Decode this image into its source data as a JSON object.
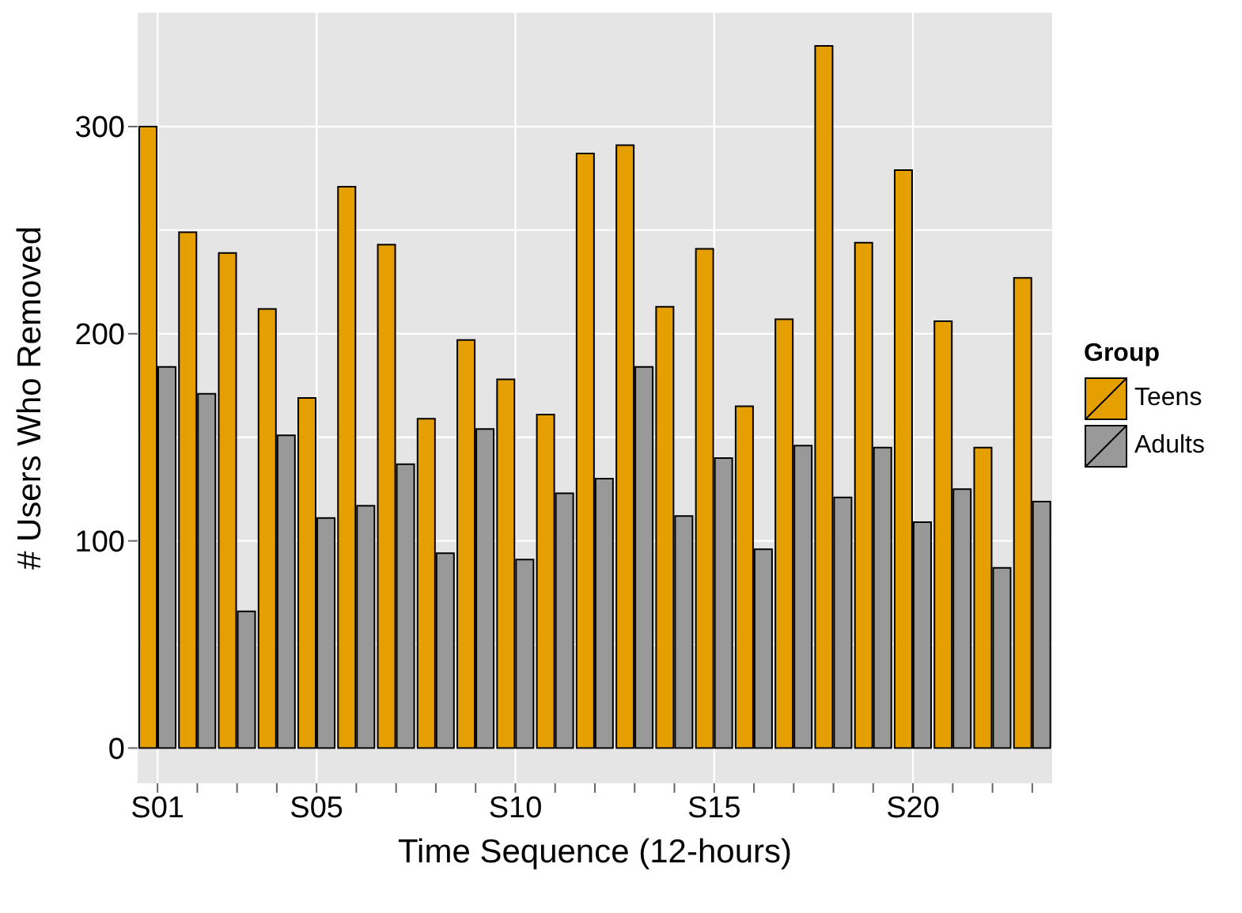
{
  "chart_data": {
    "type": "bar",
    "xlabel": "Time Sequence (12-hours)",
    "ylabel": "# Users Who Removed",
    "legend_title": "Group",
    "categories": [
      "S01",
      null,
      null,
      null,
      "S05",
      null,
      null,
      null,
      null,
      "S10",
      null,
      null,
      null,
      null,
      "S15",
      null,
      null,
      null,
      null,
      "S20",
      null,
      null,
      null
    ],
    "series": [
      {
        "name": "Teens",
        "color": "#e69f00",
        "values": [
          300,
          249,
          239,
          212,
          169,
          271,
          243,
          159,
          197,
          178,
          161,
          287,
          291,
          213,
          241,
          165,
          207,
          339,
          244,
          279,
          206,
          145,
          227
        ]
      },
      {
        "name": "Adults",
        "color": "#999999",
        "values": [
          184,
          171,
          66,
          151,
          111,
          117,
          137,
          94,
          154,
          91,
          123,
          130,
          184,
          112,
          140,
          96,
          146,
          121,
          145,
          109,
          125,
          87,
          119
        ]
      }
    ],
    "ylim": [
      -17,
      355
    ],
    "yticks": [
      0,
      100,
      200,
      300
    ],
    "grid": true,
    "legend": "right"
  }
}
